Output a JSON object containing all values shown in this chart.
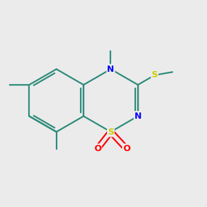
{
  "bg_color": "#EBEBEB",
  "bond_color": "#2E8B7A",
  "N_color": "#0000FF",
  "S_color": "#CCCC00",
  "O_color": "#FF0000",
  "bond_width": 1.6,
  "font_size_atom": 9,
  "figsize": [
    3.0,
    3.0
  ],
  "dpi": 100,
  "xlim": [
    -1.6,
    1.8
  ],
  "ylim": [
    -1.4,
    1.4
  ]
}
